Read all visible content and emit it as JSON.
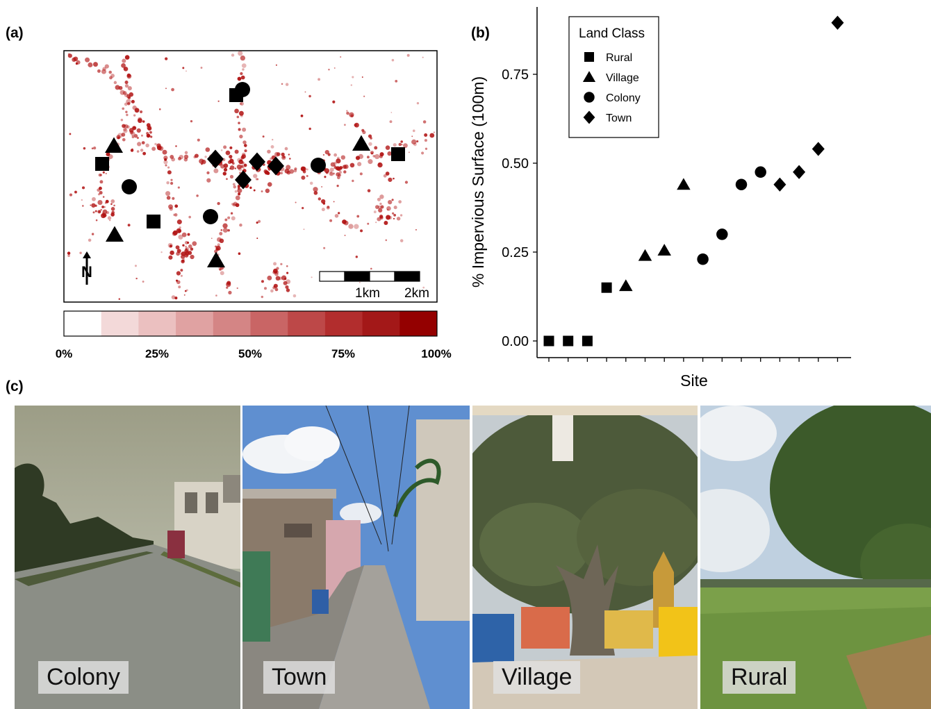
{
  "panel_labels": {
    "a": "(a)",
    "b": "(b)",
    "c": "(c)"
  },
  "map": {
    "colorbar_ticks": [
      "0%",
      "25%",
      "50%",
      "75%",
      "100%"
    ],
    "colorbar_colors": [
      "#ffffff",
      "#f3d9d9",
      "#ebc0c0",
      "#e0a2a2",
      "#d48585",
      "#c96565",
      "#bd4848",
      "#b22d2d",
      "#a31818",
      "#940000"
    ],
    "scale_labels": [
      "1km",
      "2km"
    ],
    "north_label": "N",
    "accent_color": "#b01010"
  },
  "chart_data": {
    "type": "scatter",
    "xlabel": "Site",
    "ylabel": "% Impervious Surface (100m)",
    "ylim": [
      0,
      0.95
    ],
    "yticks": [
      "0.00",
      "0.25",
      "0.50",
      "0.75"
    ],
    "legend": {
      "title": "Land Class",
      "placement": "top-left"
    },
    "series": [
      {
        "name": "Rural",
        "marker": "square",
        "x": [
          1,
          2,
          3,
          4
        ],
        "y": [
          0.0,
          0.0,
          0.0,
          0.15
        ]
      },
      {
        "name": "Village",
        "marker": "triangle",
        "x": [
          5,
          6,
          7,
          8
        ],
        "y": [
          0.155,
          0.24,
          0.255,
          0.44
        ]
      },
      {
        "name": "Colony",
        "marker": "circle",
        "x": [
          9,
          10,
          11,
          12
        ],
        "y": [
          0.23,
          0.3,
          0.44,
          0.475
        ]
      },
      {
        "name": "Town",
        "marker": "diamond",
        "x": [
          13,
          14,
          15,
          16
        ],
        "y": [
          0.44,
          0.475,
          0.54,
          0.895
        ]
      }
    ]
  },
  "photos": [
    {
      "caption": "Colony"
    },
    {
      "caption": "Town"
    },
    {
      "caption": "Village"
    },
    {
      "caption": "Rural"
    }
  ]
}
